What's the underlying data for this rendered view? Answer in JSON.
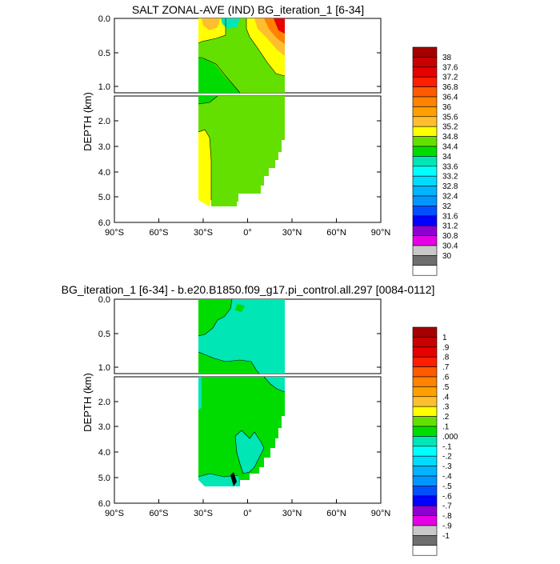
{
  "chart_data": [
    {
      "type": "heatmap",
      "title": "SALT ZONAL-AVE (IND) BG_iteration_1 [6-34]",
      "ylabel": "DEPTH (km)",
      "xlabel": "",
      "x_ticks": [
        "90°S",
        "60°S",
        "30°S",
        "0°",
        "30°N",
        "60°N",
        "90°N"
      ],
      "xlim": [
        -90,
        90
      ],
      "ylim": [
        6.0,
        0.0
      ],
      "y_ticks_upper": [
        "0.0",
        "0.5",
        "1.0"
      ],
      "y_ticks_lower": [
        "2.0",
        "3.0",
        "4.0",
        "5.0",
        "6.0"
      ],
      "colorbar_labels": [
        "38",
        "37.6",
        "37.2",
        "36.8",
        "36.4",
        "36",
        "35.6",
        "35.2",
        "34.8",
        "34.4",
        "34",
        "33.6",
        "33.2",
        "32.8",
        "32.4",
        "32",
        "31.6",
        "31.2",
        "30.8",
        "30.4",
        "30"
      ],
      "colorbar_colors": [
        "#a50000",
        "#c80000",
        "#e60000",
        "#ff1e00",
        "#ff5a00",
        "#ff8200",
        "#ffa000",
        "#ffbe2e",
        "#ffff00",
        "#64e000",
        "#00dc00",
        "#00e6b4",
        "#00ffff",
        "#00dcff",
        "#00b4ff",
        "#0096ff",
        "#0050ff",
        "#0000ff",
        "#8c00d2",
        "#e600e6",
        "#c8c8c8",
        "#6e6e6e",
        "#ffffff"
      ]
    },
    {
      "type": "heatmap",
      "title": "BG_iteration_1 [6-34] - b.e20.B1850.f09_g17.pi_control.all.297 [0084-0112]",
      "ylabel": "DEPTH (km)",
      "xlabel": "",
      "x_ticks": [
        "90°S",
        "60°S",
        "30°S",
        "0°",
        "30°N",
        "60°N",
        "90°N"
      ],
      "xlim": [
        -90,
        90
      ],
      "ylim": [
        6.0,
        0.0
      ],
      "y_ticks_upper": [
        "0.0",
        "0.5",
        "1.0"
      ],
      "y_ticks_lower": [
        "2.0",
        "3.0",
        "4.0",
        "5.0",
        "6.0"
      ],
      "colorbar_labels": [
        "1",
        ".9",
        ".8",
        ".7",
        ".6",
        ".5",
        ".4",
        ".3",
        ".2",
        ".1",
        ".000",
        "-.1",
        "-.2",
        "-.3",
        "-.4",
        "-.5",
        "-.6",
        "-.7",
        "-.8",
        "-.9",
        "-1"
      ],
      "colorbar_colors": [
        "#a50000",
        "#c80000",
        "#e60000",
        "#ff1e00",
        "#ff5a00",
        "#ff8200",
        "#ffa000",
        "#ffbe2e",
        "#ffff00",
        "#64e000",
        "#00dc00",
        "#00e6b4",
        "#00ffff",
        "#00dcff",
        "#00b4ff",
        "#0096ff",
        "#0050ff",
        "#0000ff",
        "#8c00d2",
        "#e600e6",
        "#c8c8c8",
        "#6e6e6e",
        "#ffffff"
      ]
    }
  ]
}
